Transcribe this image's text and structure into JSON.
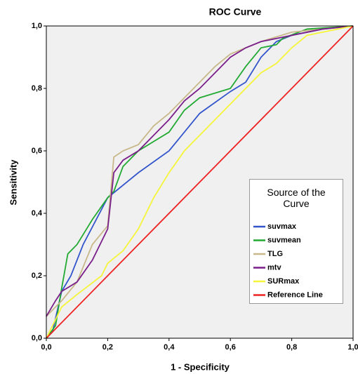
{
  "chart_data": {
    "type": "line",
    "title": "ROC Curve",
    "x_label": "1 - Specificity",
    "y_label": "Sensitivity",
    "legend_title": "Source of the Curve",
    "legend_position": "lower right",
    "xlim": [
      0,
      1
    ],
    "ylim": [
      0,
      1
    ],
    "xticks": [
      {
        "value": 0,
        "label": "0,0"
      },
      {
        "value": 0.2,
        "label": "0,2"
      },
      {
        "value": 0.4,
        "label": "0,4"
      },
      {
        "value": 0.6,
        "label": "0,6"
      },
      {
        "value": 0.8,
        "label": "0,8"
      },
      {
        "value": 1,
        "label": "1,0"
      }
    ],
    "yticks": [
      {
        "value": 0,
        "label": "0,0"
      },
      {
        "value": 0.2,
        "label": "0,2"
      },
      {
        "value": 0.4,
        "label": "0,4"
      },
      {
        "value": 0.6,
        "label": "0,6"
      },
      {
        "value": 0.8,
        "label": "0,8"
      },
      {
        "value": 1,
        "label": "1,0"
      }
    ],
    "series": [
      {
        "name": "suvmax",
        "color": "#3355cc",
        "x": [
          0,
          0.02,
          0.05,
          0.08,
          0.12,
          0.2,
          0.3,
          0.4,
          0.5,
          0.6,
          0.65,
          0.7,
          0.75,
          0.8,
          0.9,
          1
        ],
        "values": [
          0,
          0.02,
          0.15,
          0.2,
          0.3,
          0.45,
          0.53,
          0.6,
          0.72,
          0.79,
          0.82,
          0.9,
          0.95,
          0.97,
          0.99,
          1
        ]
      },
      {
        "name": "suvmean",
        "color": "#22aa33",
        "x": [
          0,
          0.03,
          0.05,
          0.07,
          0.1,
          0.15,
          0.2,
          0.22,
          0.25,
          0.3,
          0.35,
          0.4,
          0.45,
          0.5,
          0.6,
          0.65,
          0.7,
          0.75,
          0.77,
          0.85,
          1
        ],
        "values": [
          0,
          0.04,
          0.16,
          0.27,
          0.3,
          0.38,
          0.45,
          0.47,
          0.55,
          0.6,
          0.63,
          0.66,
          0.73,
          0.77,
          0.8,
          0.87,
          0.93,
          0.94,
          0.96,
          0.99,
          1
        ]
      },
      {
        "name": "TLG",
        "color": "#c8b88a",
        "x": [
          0,
          0.03,
          0.05,
          0.1,
          0.15,
          0.2,
          0.22,
          0.25,
          0.3,
          0.35,
          0.4,
          0.45,
          0.5,
          0.55,
          0.6,
          0.7,
          0.8,
          0.9,
          1
        ],
        "values": [
          0.07,
          0.1,
          0.12,
          0.18,
          0.3,
          0.36,
          0.58,
          0.6,
          0.62,
          0.68,
          0.72,
          0.77,
          0.82,
          0.87,
          0.91,
          0.95,
          0.98,
          0.99,
          1
        ]
      },
      {
        "name": "mtv",
        "color": "#7a1f8a",
        "x": [
          0,
          0.03,
          0.05,
          0.1,
          0.15,
          0.2,
          0.22,
          0.25,
          0.3,
          0.35,
          0.4,
          0.45,
          0.5,
          0.55,
          0.6,
          0.65,
          0.7,
          0.8,
          0.9,
          1
        ],
        "values": [
          0.07,
          0.12,
          0.15,
          0.18,
          0.25,
          0.35,
          0.53,
          0.57,
          0.6,
          0.65,
          0.7,
          0.76,
          0.8,
          0.85,
          0.9,
          0.93,
          0.95,
          0.97,
          0.99,
          1
        ]
      },
      {
        "name": "SURmax",
        "color": "#f5f53a",
        "x": [
          0,
          0.05,
          0.1,
          0.18,
          0.2,
          0.25,
          0.3,
          0.35,
          0.4,
          0.45,
          0.5,
          0.55,
          0.6,
          0.65,
          0.7,
          0.75,
          0.8,
          0.85,
          0.9,
          1
        ],
        "values": [
          0,
          0.1,
          0.14,
          0.2,
          0.24,
          0.28,
          0.35,
          0.45,
          0.53,
          0.6,
          0.65,
          0.7,
          0.75,
          0.8,
          0.85,
          0.88,
          0.93,
          0.97,
          0.98,
          1
        ]
      },
      {
        "name": "Reference Line",
        "color": "#ee2222",
        "x": [
          0,
          1
        ],
        "values": [
          0,
          1
        ]
      }
    ]
  }
}
